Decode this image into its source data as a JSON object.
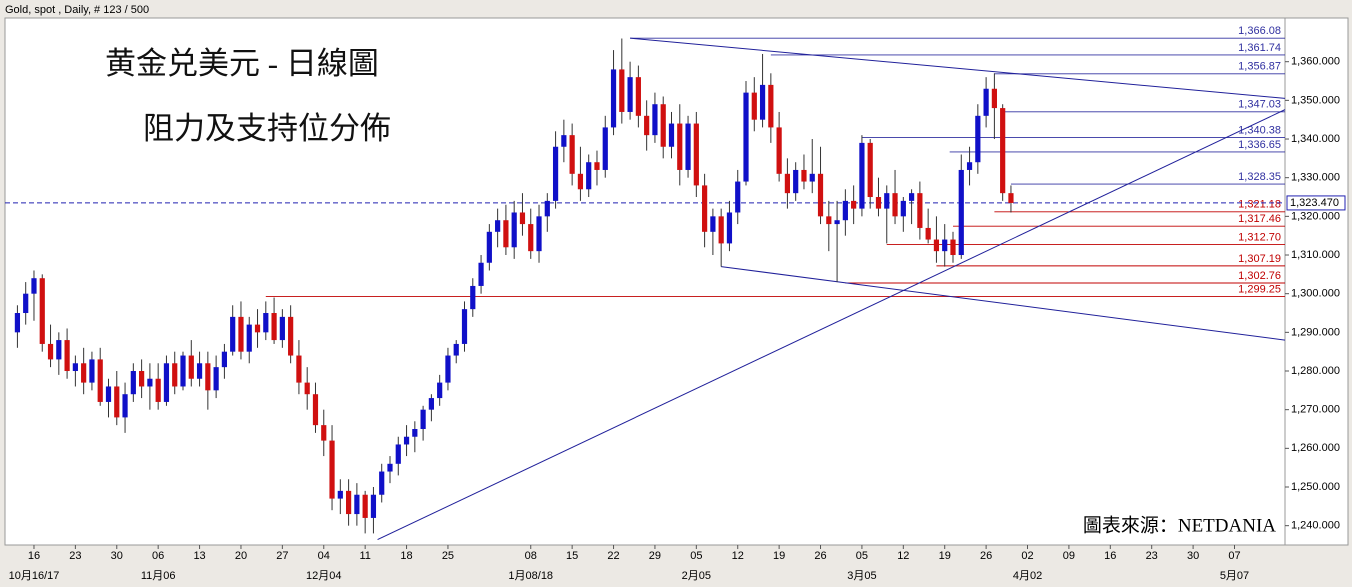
{
  "chart_data": {
    "type": "candlestick",
    "header": "Gold, spot , Daily, # 123 / 500",
    "title": "黄金兑美元 - 日線圖",
    "subtitle": "阻力及支持位分佈",
    "source": "圖表來源：NETDANIA",
    "up_color": "#1010c8",
    "down_color": "#d01010",
    "level_up_color": "#3030a0",
    "level_down_color": "#c00000",
    "trend_color": "#20209a",
    "xlim": [
      -1.5,
      153.1
    ],
    "ylim": [
      1235,
      1371.3
    ],
    "yticks": [
      {
        "value": 1240,
        "label": "1,240.000"
      },
      {
        "value": 1250,
        "label": "1,250.000"
      },
      {
        "value": 1260,
        "label": "1,260.000"
      },
      {
        "value": 1270,
        "label": "1,270.000"
      },
      {
        "value": 1280,
        "label": "1,280.000"
      },
      {
        "value": 1290,
        "label": "1,290.000"
      },
      {
        "value": 1300,
        "label": "1,300.000"
      },
      {
        "value": 1310,
        "label": "1,310.000"
      },
      {
        "value": 1320,
        "label": "1,320.000"
      },
      {
        "value": 1330,
        "label": "1,330.000"
      },
      {
        "value": 1340,
        "label": "1,340.000"
      },
      {
        "value": 1350,
        "label": "1,350.000"
      },
      {
        "value": 1360,
        "label": "1,360.000"
      }
    ],
    "xticks": [
      {
        "value": 2,
        "label": "16"
      },
      {
        "value": 7,
        "label": "23"
      },
      {
        "value": 12,
        "label": "30"
      },
      {
        "value": 17,
        "label": "06"
      },
      {
        "value": 22,
        "label": "13"
      },
      {
        "value": 27,
        "label": "20"
      },
      {
        "value": 32,
        "label": "27"
      },
      {
        "value": 37,
        "label": "04"
      },
      {
        "value": 42,
        "label": "11"
      },
      {
        "value": 47,
        "label": "18"
      },
      {
        "value": 52,
        "label": "25"
      },
      {
        "value": 62,
        "label": "08"
      },
      {
        "value": 67,
        "label": "15"
      },
      {
        "value": 72,
        "label": "22"
      },
      {
        "value": 77,
        "label": "29"
      },
      {
        "value": 82,
        "label": "05"
      },
      {
        "value": 87,
        "label": "12"
      },
      {
        "value": 92,
        "label": "19"
      },
      {
        "value": 97,
        "label": "26"
      },
      {
        "value": 102,
        "label": "05"
      },
      {
        "value": 107,
        "label": "12"
      },
      {
        "value": 112,
        "label": "19"
      },
      {
        "value": 117,
        "label": "26"
      },
      {
        "value": 122,
        "label": "02"
      },
      {
        "value": 127,
        "label": "09"
      },
      {
        "value": 132,
        "label": "16"
      },
      {
        "value": 137,
        "label": "23"
      },
      {
        "value": 142,
        "label": "30"
      },
      {
        "value": 147,
        "label": "07"
      }
    ],
    "month_ticks": [
      {
        "value": 2,
        "label": "10月16/17"
      },
      {
        "value": 17,
        "label": "11月06"
      },
      {
        "value": 37,
        "label": "12月04"
      },
      {
        "value": 62,
        "label": "1月08/18"
      },
      {
        "value": 82,
        "label": "2月05"
      },
      {
        "value": 102,
        "label": "3月05"
      },
      {
        "value": 122,
        "label": "4月02"
      },
      {
        "value": 147,
        "label": "5月07"
      }
    ],
    "ohlc": [
      [
        1290,
        1297,
        1286,
        1295
      ],
      [
        1295,
        1303,
        1292,
        1300
      ],
      [
        1300,
        1306,
        1293,
        1304
      ],
      [
        1304,
        1305,
        1285,
        1287
      ],
      [
        1287,
        1292,
        1281,
        1283
      ],
      [
        1283,
        1290,
        1279,
        1288
      ],
      [
        1288,
        1291,
        1278,
        1280
      ],
      [
        1280,
        1284,
        1276,
        1282
      ],
      [
        1282,
        1286,
        1274,
        1277
      ],
      [
        1277,
        1285,
        1275,
        1283
      ],
      [
        1283,
        1286,
        1271,
        1272
      ],
      [
        1272,
        1278,
        1268,
        1276
      ],
      [
        1276,
        1280,
        1266,
        1268
      ],
      [
        1268,
        1277,
        1264,
        1274
      ],
      [
        1274,
        1282,
        1272,
        1280
      ],
      [
        1280,
        1283,
        1273,
        1276
      ],
      [
        1276,
        1282,
        1270,
        1278
      ],
      [
        1278,
        1282,
        1270,
        1272
      ],
      [
        1272,
        1284,
        1271,
        1282
      ],
      [
        1282,
        1285,
        1274,
        1276
      ],
      [
        1276,
        1285,
        1275,
        1284
      ],
      [
        1284,
        1288,
        1276,
        1278
      ],
      [
        1278,
        1285,
        1276,
        1282
      ],
      [
        1282,
        1285,
        1270,
        1275
      ],
      [
        1275,
        1284,
        1273,
        1281
      ],
      [
        1281,
        1287,
        1278,
        1285
      ],
      [
        1285,
        1297,
        1284,
        1294
      ],
      [
        1294,
        1298,
        1283,
        1285
      ],
      [
        1285,
        1294,
        1282,
        1292
      ],
      [
        1292,
        1296,
        1286,
        1290
      ],
      [
        1290,
        1298,
        1288,
        1295
      ],
      [
        1295,
        1299,
        1287,
        1288
      ],
      [
        1288,
        1296,
        1286,
        1294
      ],
      [
        1294,
        1297,
        1282,
        1284
      ],
      [
        1284,
        1288,
        1274,
        1277
      ],
      [
        1277,
        1281,
        1270,
        1274
      ],
      [
        1274,
        1277,
        1264,
        1266
      ],
      [
        1266,
        1270,
        1258,
        1262
      ],
      [
        1262,
        1266,
        1244,
        1247
      ],
      [
        1247,
        1252,
        1243,
        1249
      ],
      [
        1249,
        1252,
        1240,
        1243
      ],
      [
        1243,
        1251,
        1240,
        1248
      ],
      [
        1248,
        1249,
        1238,
        1242
      ],
      [
        1242,
        1250,
        1238,
        1248
      ],
      [
        1248,
        1256,
        1246,
        1254
      ],
      [
        1254,
        1258,
        1251,
        1256
      ],
      [
        1256,
        1263,
        1253,
        1261
      ],
      [
        1261,
        1266,
        1258,
        1263
      ],
      [
        1263,
        1267,
        1259,
        1265
      ],
      [
        1265,
        1271,
        1262,
        1270
      ],
      [
        1270,
        1274,
        1267,
        1273
      ],
      [
        1273,
        1279,
        1271,
        1277
      ],
      [
        1277,
        1286,
        1275,
        1284
      ],
      [
        1284,
        1288,
        1282,
        1287
      ],
      [
        1287,
        1298,
        1285,
        1296
      ],
      [
        1296,
        1304,
        1294,
        1302
      ],
      [
        1302,
        1310,
        1300,
        1308
      ],
      [
        1308,
        1318,
        1306,
        1316
      ],
      [
        1316,
        1322,
        1312,
        1319
      ],
      [
        1319,
        1323,
        1310,
        1312
      ],
      [
        1312,
        1324,
        1309,
        1321
      ],
      [
        1321,
        1326,
        1315,
        1318
      ],
      [
        1318,
        1322,
        1309,
        1311
      ],
      [
        1311,
        1323,
        1308,
        1320
      ],
      [
        1320,
        1326,
        1316,
        1324
      ],
      [
        1324,
        1342,
        1322,
        1338
      ],
      [
        1338,
        1345,
        1334,
        1341
      ],
      [
        1341,
        1344,
        1328,
        1331
      ],
      [
        1331,
        1338,
        1324,
        1327
      ],
      [
        1327,
        1336,
        1325,
        1334
      ],
      [
        1334,
        1337,
        1328,
        1332
      ],
      [
        1332,
        1346,
        1330,
        1343
      ],
      [
        1343,
        1363,
        1341,
        1358
      ],
      [
        1358,
        1366,
        1344,
        1347
      ],
      [
        1347,
        1360,
        1345,
        1356
      ],
      [
        1356,
        1359,
        1343,
        1346
      ],
      [
        1346,
        1350,
        1337,
        1341
      ],
      [
        1341,
        1352,
        1339,
        1349
      ],
      [
        1349,
        1351,
        1335,
        1338
      ],
      [
        1338,
        1347,
        1335,
        1344
      ],
      [
        1344,
        1349,
        1328,
        1332
      ],
      [
        1332,
        1346,
        1330,
        1344
      ],
      [
        1344,
        1347,
        1325,
        1328
      ],
      [
        1328,
        1331,
        1312,
        1316
      ],
      [
        1316,
        1322,
        1310,
        1320
      ],
      [
        1320,
        1322,
        1307,
        1313
      ],
      [
        1313,
        1324,
        1311,
        1321
      ],
      [
        1321,
        1332,
        1318,
        1329
      ],
      [
        1329,
        1355,
        1328,
        1352
      ],
      [
        1352,
        1356,
        1342,
        1345
      ],
      [
        1345,
        1362,
        1343,
        1354
      ],
      [
        1354,
        1357,
        1339,
        1343
      ],
      [
        1343,
        1347,
        1329,
        1331
      ],
      [
        1331,
        1335,
        1322,
        1326
      ],
      [
        1326,
        1334,
        1324,
        1332
      ],
      [
        1332,
        1336,
        1327,
        1329
      ],
      [
        1329,
        1340,
        1326,
        1331
      ],
      [
        1331,
        1338,
        1318,
        1320
      ],
      [
        1320,
        1324,
        1311,
        1318
      ],
      [
        1318,
        1324,
        1303,
        1319
      ],
      [
        1319,
        1327,
        1315,
        1324
      ],
      [
        1324,
        1328,
        1318,
        1322
      ],
      [
        1322,
        1341,
        1320,
        1339
      ],
      [
        1339,
        1340,
        1322,
        1325
      ],
      [
        1325,
        1330,
        1320,
        1322
      ],
      [
        1322,
        1328,
        1313,
        1326
      ],
      [
        1326,
        1332,
        1318,
        1320
      ],
      [
        1320,
        1325,
        1316,
        1324
      ],
      [
        1324,
        1327,
        1318,
        1326
      ],
      [
        1326,
        1329,
        1314,
        1317
      ],
      [
        1317,
        1322,
        1313,
        1314
      ],
      [
        1314,
        1320,
        1308,
        1311
      ],
      [
        1311,
        1318,
        1307,
        1314
      ],
      [
        1314,
        1316,
        1308,
        1310
      ],
      [
        1310,
        1336,
        1309,
        1332
      ],
      [
        1332,
        1338,
        1328,
        1334
      ],
      [
        1334,
        1349,
        1331,
        1346
      ],
      [
        1346,
        1356,
        1343,
        1353
      ],
      [
        1353,
        1357,
        1340,
        1348
      ],
      [
        1348,
        1349,
        1324,
        1326
      ],
      [
        1326,
        1328,
        1321,
        1323.47
      ]
    ],
    "levels": [
      {
        "value": 1366.08,
        "label": "1,366.08",
        "start": 74,
        "kind": "resistance"
      },
      {
        "value": 1361.74,
        "label": "1,361.74",
        "start": 91,
        "kind": "resistance"
      },
      {
        "value": 1356.87,
        "label": "1,356.87",
        "start": 118,
        "kind": "resistance"
      },
      {
        "value": 1347.03,
        "label": "1,347.03",
        "start": 119,
        "kind": "resistance"
      },
      {
        "value": 1340.38,
        "label": "1,340.38",
        "start": 102,
        "kind": "resistance"
      },
      {
        "value": 1336.65,
        "label": "1,336.65",
        "start": 112.6,
        "kind": "resistance"
      },
      {
        "value": 1328.35,
        "label": "1,328.35",
        "start": 120,
        "kind": "resistance"
      },
      {
        "value": 1321.18,
        "label": "1,321.18",
        "start": 118,
        "kind": "support"
      },
      {
        "value": 1317.46,
        "label": "1,317.46",
        "start": 113,
        "kind": "support"
      },
      {
        "value": 1312.7,
        "label": "1,312.70",
        "start": 105,
        "kind": "support"
      },
      {
        "value": 1307.19,
        "label": "1,307.19",
        "start": 111,
        "kind": "support"
      },
      {
        "value": 1302.76,
        "label": "1,302.76",
        "start": 100,
        "kind": "support"
      },
      {
        "value": 1299.25,
        "label": "1,299.25",
        "start": 30,
        "kind": "support"
      }
    ],
    "last": {
      "value": 1323.47,
      "label": "1,323.470"
    },
    "trendlines": [
      {
        "from": [
          74,
          1366.08
        ],
        "to": [
          153.1,
          1350.5
        ]
      },
      {
        "from": [
          85,
          1307
        ],
        "to": [
          153.1,
          1288
        ]
      },
      {
        "from": [
          43.5,
          1236.4
        ],
        "to": [
          153.1,
          1347.6
        ]
      }
    ]
  }
}
